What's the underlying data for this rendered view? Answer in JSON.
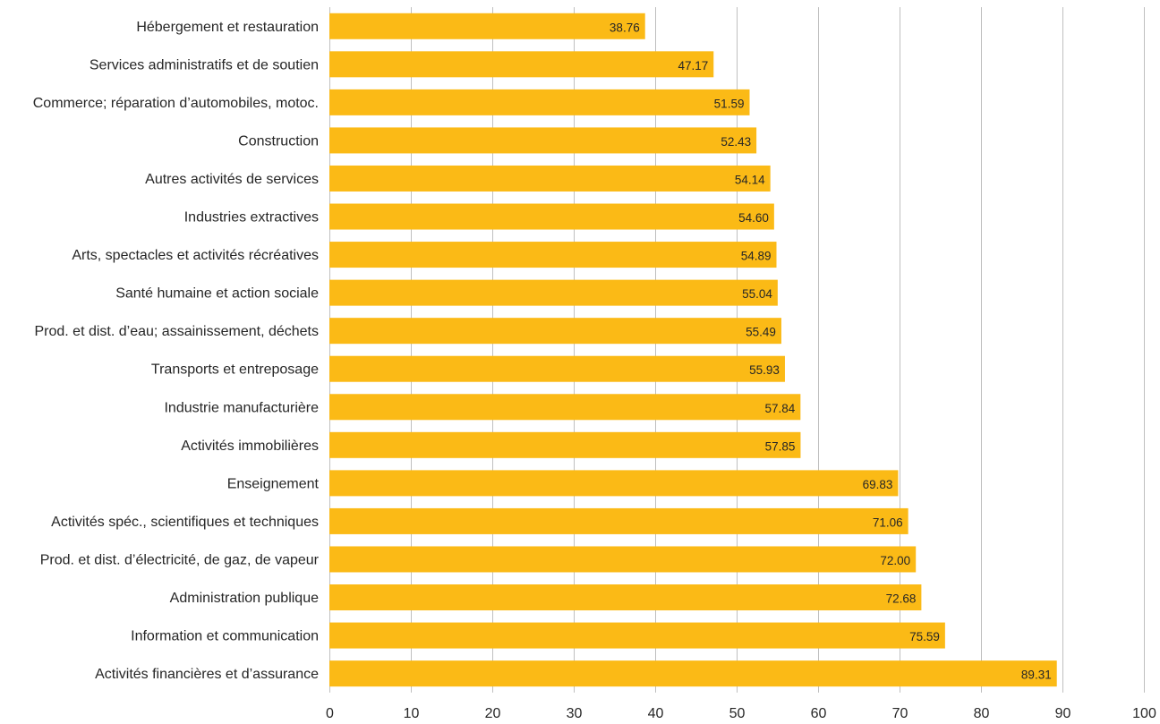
{
  "chart_data": {
    "type": "bar",
    "orientation": "horizontal",
    "categories": [
      "Hébergement et restauration",
      "Services administratifs et de soutien",
      "Commerce; réparation d’automobiles, motoc.",
      "Construction",
      "Autres activités de services",
      "Industries extractives",
      "Arts, spectacles et activités récréatives",
      "Santé humaine et action sociale",
      "Prod. et dist. d’eau; assainissement, déchets",
      "Transports et entreposage",
      "Industrie manufacturière",
      "Activités immobilières",
      "Enseignement",
      "Activités spéc., scientifiques et techniques",
      "Prod. et dist. d’électricité, de gaz, de vapeur",
      "Administration publique",
      "Information et communication",
      "Activités financières et d’assurance"
    ],
    "values": [
      38.76,
      47.17,
      51.59,
      52.43,
      54.14,
      54.6,
      54.89,
      55.04,
      55.49,
      55.93,
      57.84,
      57.85,
      69.83,
      71.06,
      72.0,
      72.68,
      75.59,
      89.31
    ],
    "value_labels": [
      "38.76",
      "47.17",
      "51.59",
      "52.43",
      "54.14",
      "54.60",
      "54.89",
      "55.04",
      "55.49",
      "55.93",
      "57.84",
      "57.85",
      "69.83",
      "71.06",
      "72.00",
      "72.68",
      "75.59",
      "89.31"
    ],
    "xlim": [
      0,
      100
    ],
    "x_ticks": [
      0,
      10,
      20,
      30,
      40,
      50,
      60,
      70,
      80,
      90,
      100
    ],
    "x_tick_labels": [
      "0",
      "10",
      "20",
      "30",
      "40",
      "50",
      "60",
      "70",
      "80",
      "90",
      "100"
    ],
    "title": "",
    "xlabel": "",
    "ylabel": "",
    "grid": "vertical",
    "legend": "none",
    "bar_color": "#FBBA16",
    "grid_color": "#BFBFBF",
    "text_color": "#262626"
  }
}
